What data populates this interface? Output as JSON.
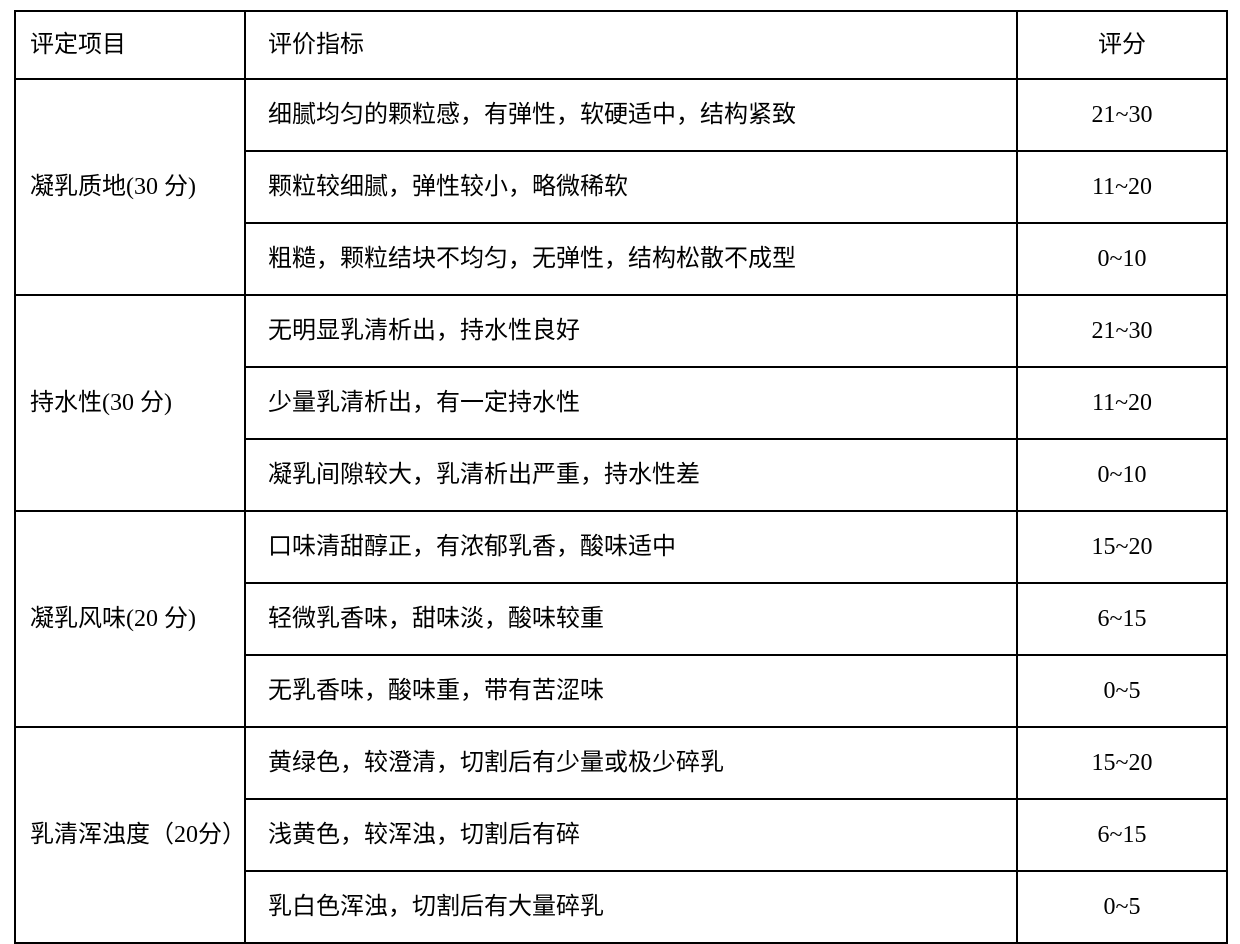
{
  "header": {
    "col1": "评定项目",
    "col2": "评价指标",
    "col3": "评分"
  },
  "rows": [
    {
      "item": "凝乳质地(30 分)",
      "criteria": [
        {
          "desc": "细腻均匀的颗粒感，有弹性，软硬适中，结构紧致",
          "score": "21~30"
        },
        {
          "desc": "颗粒较细腻，弹性较小，略微稀软",
          "score": "11~20"
        },
        {
          "desc": "粗糙，颗粒结块不均匀，无弹性，结构松散不成型",
          "score": "0~10"
        }
      ]
    },
    {
      "item": "持水性(30 分)",
      "criteria": [
        {
          "desc": "无明显乳清析出，持水性良好",
          "score": "21~30"
        },
        {
          "desc": "少量乳清析出，有一定持水性",
          "score": "11~20"
        },
        {
          "desc": "凝乳间隙较大，乳清析出严重，持水性差",
          "score": "0~10"
        }
      ]
    },
    {
      "item": "凝乳风味(20 分)",
      "criteria": [
        {
          "desc": "口味清甜醇正，有浓郁乳香，酸味适中",
          "score": "15~20"
        },
        {
          "desc": "轻微乳香味，甜味淡，酸味较重",
          "score": "6~15"
        },
        {
          "desc": "无乳香味，酸味重，带有苦涩味",
          "score": "0~5"
        }
      ]
    },
    {
      "item": "乳清浑浊度（20分）",
      "criteria": [
        {
          "desc": "黄绿色，较澄清，切割后有少量或极少碎乳",
          "score": "15~20"
        },
        {
          "desc": "浅黄色，较浑浊，切割后有碎",
          "score": "6~15"
        },
        {
          "desc": "乳白色浑浊，切割后有大量碎乳",
          "score": "0~5"
        }
      ]
    }
  ]
}
